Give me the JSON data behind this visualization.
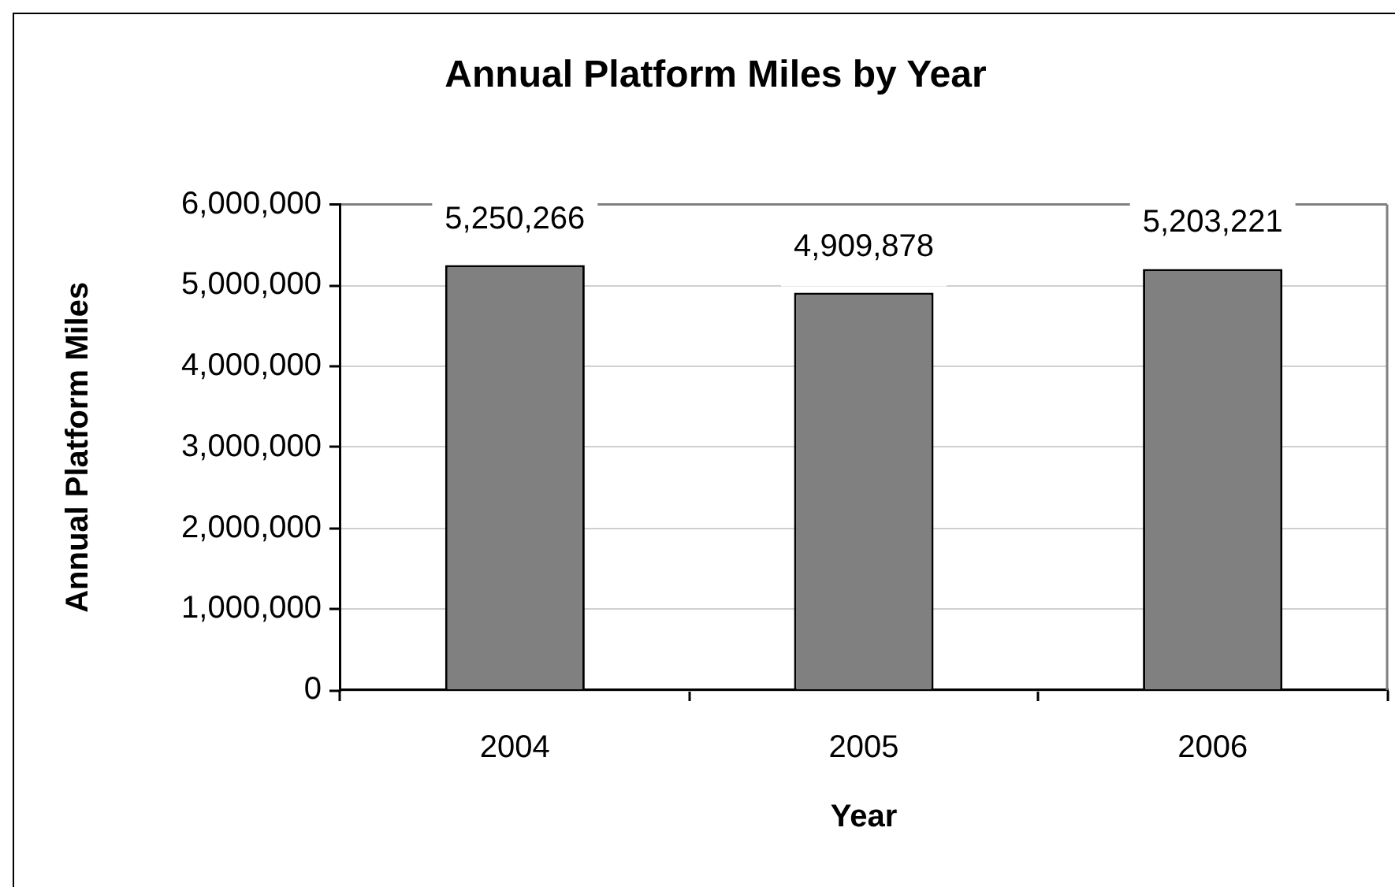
{
  "chart_data": {
    "type": "bar",
    "title": "Annual Platform Miles by Year",
    "xlabel": "Year",
    "ylabel": "Annual Platform Miles",
    "categories": [
      "2004",
      "2005",
      "2006"
    ],
    "values": [
      5250266,
      4909878,
      5203221
    ],
    "value_labels": [
      "5,250,266",
      "4,909,878",
      "5,203,221"
    ],
    "color": "#808080",
    "ylim": [
      0,
      6000000
    ],
    "yticks": [
      0,
      {
        "value": 1000000,
        "label": "1,000,000"
      },
      {
        "value": 2000000,
        "label": "2,000,000"
      },
      {
        "value": 3000000,
        "label": "3,000,000"
      },
      {
        "value": 4000000,
        "label": "4,000,000"
      },
      {
        "value": 5000000,
        "label": "5,000,000"
      },
      {
        "value": 6000000,
        "label": "6,000,000"
      }
    ],
    "grid": "y",
    "legend": false
  }
}
